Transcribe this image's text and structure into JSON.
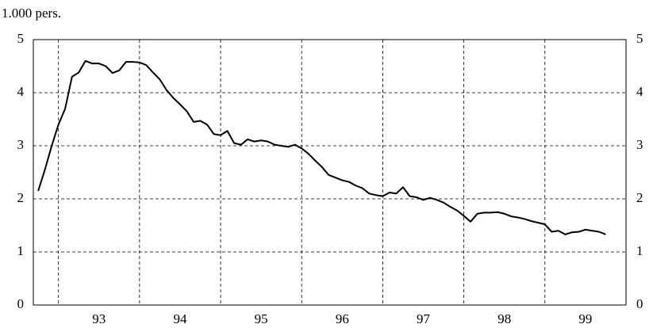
{
  "chart_data": {
    "type": "line",
    "title": "1.000 pers.",
    "x": [
      92.75,
      92.833,
      92.917,
      93,
      93.083,
      93.167,
      93.25,
      93.333,
      93.417,
      93.5,
      93.583,
      93.667,
      93.75,
      93.833,
      93.917,
      94,
      94.083,
      94.167,
      94.25,
      94.333,
      94.417,
      94.5,
      94.583,
      94.667,
      94.75,
      94.833,
      94.917,
      95,
      95.083,
      95.167,
      95.25,
      95.333,
      95.417,
      95.5,
      95.583,
      95.667,
      95.75,
      95.833,
      95.917,
      96,
      96.083,
      96.167,
      96.25,
      96.333,
      96.417,
      96.5,
      96.583,
      96.667,
      96.75,
      96.833,
      96.917,
      97,
      97.083,
      97.167,
      97.25,
      97.333,
      97.417,
      97.5,
      97.583,
      97.667,
      97.75,
      97.833,
      97.917,
      98,
      98.083,
      98.167,
      98.25,
      98.333,
      98.417,
      98.5,
      98.583,
      98.667,
      98.75,
      98.833,
      98.917,
      99,
      99.083,
      99.167,
      99.25,
      99.333,
      99.417,
      99.5,
      99.583,
      99.667,
      99.75
    ],
    "series": [
      {
        "color": "#000000",
        "values": [
          2.15,
          2.55,
          3.0,
          3.4,
          3.7,
          4.3,
          4.38,
          4.6,
          4.55,
          4.55,
          4.5,
          4.37,
          4.42,
          4.58,
          4.58,
          4.57,
          4.52,
          4.38,
          4.25,
          4.05,
          3.9,
          3.78,
          3.65,
          3.45,
          3.47,
          3.4,
          3.22,
          3.2,
          3.28,
          3.05,
          3.02,
          3.12,
          3.08,
          3.1,
          3.08,
          3.02,
          3.0,
          2.98,
          3.02,
          2.95,
          2.85,
          2.72,
          2.6,
          2.45,
          2.4,
          2.35,
          2.32,
          2.25,
          2.2,
          2.1,
          2.07,
          2.05,
          2.12,
          2.1,
          2.22,
          2.05,
          2.03,
          1.98,
          2.02,
          1.98,
          1.93,
          1.85,
          1.78,
          1.68,
          1.57,
          1.72,
          1.74,
          1.74,
          1.75,
          1.72,
          1.67,
          1.65,
          1.62,
          1.58,
          1.55,
          1.52,
          1.38,
          1.4,
          1.33,
          1.37,
          1.38,
          1.42,
          1.4,
          1.38,
          1.33
        ]
      }
    ],
    "xlim": [
      92.69,
      100
    ],
    "xticks": [
      {
        "value": 93.5,
        "label": "93"
      },
      {
        "value": 94.5,
        "label": "94"
      },
      {
        "value": 95.5,
        "label": "95"
      },
      {
        "value": 96.5,
        "label": "96"
      },
      {
        "value": 97.5,
        "label": "97"
      },
      {
        "value": 98.5,
        "label": "98"
      },
      {
        "value": 99.5,
        "label": "99"
      }
    ],
    "xgrid": [
      93,
      94,
      95,
      96,
      97,
      98,
      99
    ],
    "ylim": [
      0,
      5
    ],
    "yticks": [
      0,
      1,
      2,
      3,
      4,
      5
    ],
    "y2ticks": [
      0,
      1,
      2,
      3,
      4,
      5
    ],
    "grid": true
  }
}
